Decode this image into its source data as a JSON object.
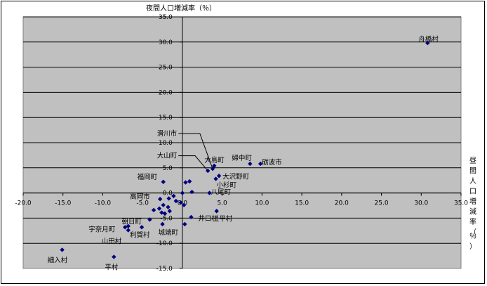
{
  "chart_data": {
    "type": "scatter",
    "title": "",
    "xlabel": "昼間人口増減率（％）",
    "ylabel": "夜間人口増減率（％）",
    "xlim": [
      -20,
      35
    ],
    "ylim": [
      -15,
      35
    ],
    "x_ticks": [
      "-20.0",
      "-15.0",
      "-10.0",
      "-5.0",
      "0.0",
      "5.0",
      "10.0",
      "15.0",
      "20.0",
      "25.0",
      "30.0",
      "35.0"
    ],
    "y_ticks": [
      "35.0",
      "30.0",
      "25.0",
      "20.0",
      "15.0",
      "10.0",
      "5.0",
      "0.0",
      "-5.0",
      "-10.0",
      "-15.0"
    ],
    "grid": "horizontal",
    "marker_color": "#000080",
    "plot_bg": "#c0c0c0",
    "points": [
      {
        "label": "舟橋村",
        "x": 30.8,
        "y": 29.8
      },
      {
        "label": "滑川市",
        "x": 3.8,
        "y": 4.8
      },
      {
        "label": "大山町",
        "x": 3.2,
        "y": 4.4
      },
      {
        "label": "大島町",
        "x": 4.0,
        "y": 5.4
      },
      {
        "label": "婦中町",
        "x": 8.5,
        "y": 5.8
      },
      {
        "label": "砺波市",
        "x": 9.8,
        "y": 5.8
      },
      {
        "label": "大沢野町",
        "x": 4.6,
        "y": 3.4
      },
      {
        "label": "小杉町",
        "x": 4.2,
        "y": 2.8
      },
      {
        "label": "八尾町",
        "x": 3.4,
        "y": 0.0
      },
      {
        "label": "福岡町",
        "x": -2.4,
        "y": 2.2
      },
      {
        "label": "高岡市",
        "x": -2.8,
        "y": -1.2
      },
      {
        "label": "上平村",
        "x": 4.3,
        "y": -3.6
      },
      {
        "label": "井口村",
        "x": 1.1,
        "y": -4.8
      },
      {
        "label": "朝日町",
        "x": -4.1,
        "y": -5.3
      },
      {
        "label": "宇奈月町",
        "x": -7.2,
        "y": -6.8
      },
      {
        "label": "山田村",
        "x": -6.8,
        "y": -7.4
      },
      {
        "label": "利賀村",
        "x": -5.1,
        "y": -6.8
      },
      {
        "label": "城端町",
        "x": -2.5,
        "y": -6.2
      },
      {
        "label": "細入村",
        "x": -15.1,
        "y": -11.3
      },
      {
        "label": "平村",
        "x": -8.6,
        "y": -12.7
      },
      {
        "label": "",
        "x": 0.0,
        "y": 0.0
      },
      {
        "label": "",
        "x": 0.4,
        "y": 2.1
      },
      {
        "label": "",
        "x": 0.9,
        "y": 2.3
      },
      {
        "label": "",
        "x": 1.2,
        "y": 0.2
      },
      {
        "label": "",
        "x": -1.1,
        "y": -0.6
      },
      {
        "label": "",
        "x": -1.7,
        "y": -1.1
      },
      {
        "label": "",
        "x": -0.8,
        "y": -1.6
      },
      {
        "label": "",
        "x": -1.8,
        "y": -2.8
      },
      {
        "label": "",
        "x": -2.4,
        "y": -2.4
      },
      {
        "label": "",
        "x": -2.9,
        "y": -3.1
      },
      {
        "label": "",
        "x": -3.6,
        "y": -3.4
      },
      {
        "label": "",
        "x": -1.6,
        "y": -3.6
      },
      {
        "label": "",
        "x": -2.2,
        "y": -4.1
      },
      {
        "label": "",
        "x": -2.6,
        "y": -3.9
      },
      {
        "label": "",
        "x": 0.2,
        "y": -2.4
      },
      {
        "label": "",
        "x": 0.3,
        "y": -6.2
      },
      {
        "label": "",
        "x": -6.8,
        "y": -6.6
      },
      {
        "label": "",
        "x": -0.2,
        "y": -1.9
      }
    ]
  }
}
